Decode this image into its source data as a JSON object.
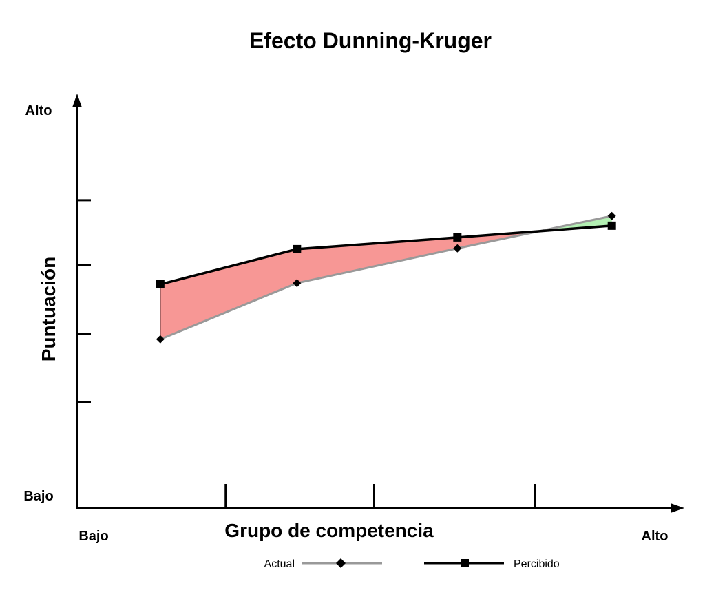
{
  "chart_data": {
    "type": "line",
    "title": "Efecto Dunning-Kruger",
    "xlabel": "Grupo de competencia",
    "ylabel": "Puntuación",
    "x_low_label": "Bajo",
    "x_high_label": "Alto",
    "y_low_label": "Bajo",
    "y_high_label": "Alto",
    "xlim": [
      0,
      100
    ],
    "ylim": [
      0,
      100
    ],
    "x_ticks": [
      25,
      50,
      77
    ],
    "y_ticks": [
      26,
      43,
      60,
      76
    ],
    "grid": false,
    "legend_position": "bottom",
    "x": [
      14,
      37,
      64,
      90
    ],
    "series": [
      {
        "name": "Actual",
        "values": [
          41.6,
          55.5,
          64.1,
          72.1
        ],
        "color": "#999999",
        "marker": "diamond"
      },
      {
        "name": "Percibido",
        "values": [
          55.2,
          63.9,
          66.8,
          69.7
        ],
        "color": "#000000",
        "marker": "square"
      }
    ],
    "fill_over_color": "#f79795",
    "fill_under_color": "#b3f0b3"
  }
}
